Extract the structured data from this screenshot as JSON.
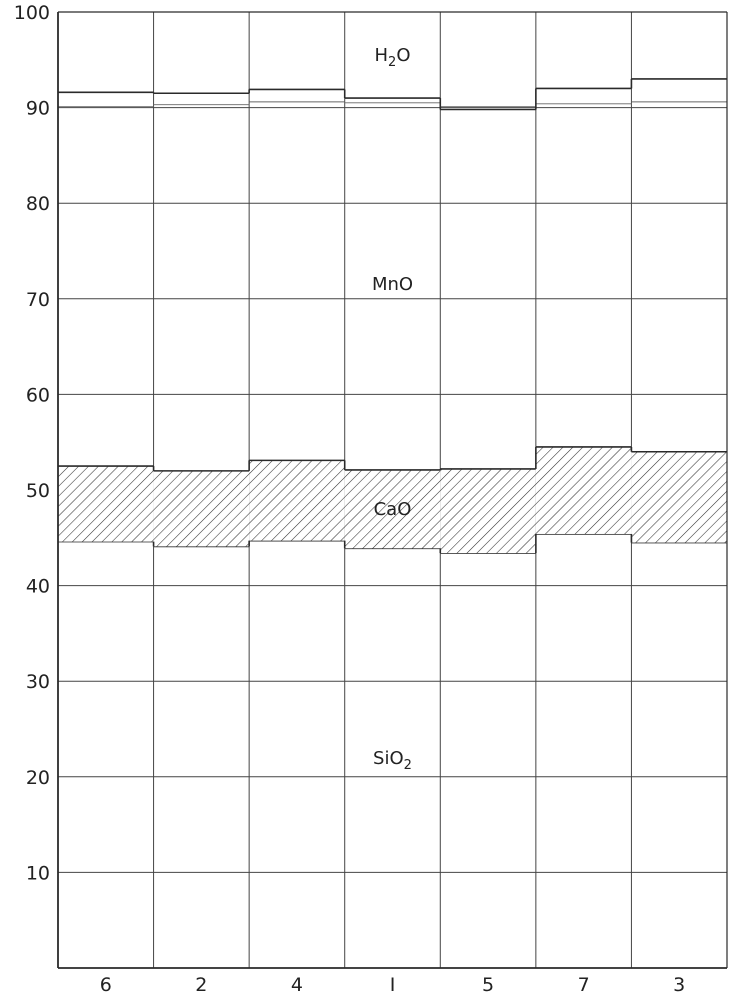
{
  "chart_data": {
    "type": "bar",
    "stacked": true,
    "normalized_to": 100,
    "title": "",
    "xlabel": "",
    "ylabel": "",
    "ylim": [
      0,
      100
    ],
    "yticks": [
      10,
      20,
      30,
      40,
      50,
      60,
      70,
      80,
      90,
      100
    ],
    "ytick_labels": [
      "10",
      "20",
      "30",
      "40",
      "50",
      "60",
      "70",
      "80",
      "90",
      "100"
    ],
    "categories": [
      "6",
      "2",
      "4",
      "I",
      "5",
      "7",
      "3"
    ],
    "grid": true,
    "bar_gap": 0,
    "series": [
      {
        "name": "SiO2",
        "label": "SiO",
        "subscript": "2",
        "pattern": "none",
        "values": [
          44.6,
          44.1,
          44.7,
          43.9,
          43.4,
          45.4,
          44.5
        ]
      },
      {
        "name": "CaO",
        "label": "CaO",
        "subscript": "",
        "pattern": "hatch",
        "values": [
          7.9,
          7.9,
          8.4,
          8.2,
          8.8,
          9.1,
          9.5
        ]
      },
      {
        "name": "MnO",
        "label": "MnO",
        "subscript": "",
        "pattern": "none",
        "values": [
          39.1,
          39.5,
          38.8,
          38.9,
          37.6,
          37.5,
          39.0
        ]
      },
      {
        "name": "H2O",
        "label": "H",
        "subscript": "2",
        "suffix": "O",
        "pattern": "none",
        "values": [
          8.4,
          8.5,
          8.1,
          9.0,
          10.2,
          8.0,
          7.0
        ]
      }
    ],
    "reference_lines": [
      {
        "label": "",
        "values": [
          90.1,
          90.3,
          90.6,
          90.5,
          90.1,
          90.4,
          90.6
        ]
      }
    ],
    "colors": {
      "line": "#2a2a2a",
      "grid": "#444444",
      "background": "#ffffff"
    }
  }
}
